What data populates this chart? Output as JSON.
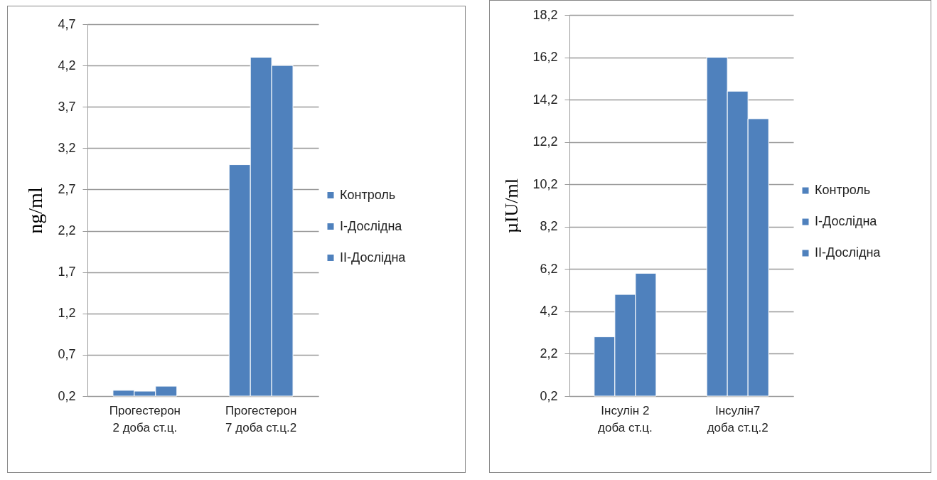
{
  "chart_data": [
    {
      "type": "bar",
      "ylabel": "ng/ml",
      "categories": [
        "Прогестерон\n2 доба ст.ц.",
        "Прогестерон\n7 доба ст.ц.2"
      ],
      "series": [
        {
          "name": "Контроль",
          "color": "#4f81bd",
          "values": [
            0.27,
            3.0
          ]
        },
        {
          "name": "I-Дослідна",
          "color": "#4f81bd",
          "values": [
            0.26,
            4.3
          ]
        },
        {
          "name": "II-Дослідна",
          "color": "#4f81bd",
          "values": [
            0.32,
            4.2
          ]
        }
      ],
      "ylim": [
        0.2,
        4.7
      ],
      "yticks": [
        {
          "value": 0.2,
          "label": "0,2"
        },
        {
          "value": 0.7,
          "label": "0,7"
        },
        {
          "value": 1.2,
          "label": "1,2"
        },
        {
          "value": 1.7,
          "label": "1,7"
        },
        {
          "value": 2.2,
          "label": "2,2"
        },
        {
          "value": 2.7,
          "label": "2,7"
        },
        {
          "value": 3.2,
          "label": "3,2"
        },
        {
          "value": 3.7,
          "label": "3,7"
        },
        {
          "value": 4.2,
          "label": "4,2"
        },
        {
          "value": 4.7,
          "label": "4,7"
        }
      ],
      "grid": "y",
      "legend": "right"
    },
    {
      "type": "bar",
      "ylabel": "µIU/ml",
      "categories": [
        "Інсулін 2\nдоба ст.ц.",
        "Інсулін7\nдоба ст.ц.2"
      ],
      "series": [
        {
          "name": "Контроль",
          "color": "#4f81bd",
          "values": [
            3.0,
            16.2
          ]
        },
        {
          "name": "I-Дослідна",
          "color": "#4f81bd",
          "values": [
            5.0,
            14.6
          ]
        },
        {
          "name": "II-Дослідна",
          "color": "#4f81bd",
          "values": [
            6.0,
            13.3
          ]
        }
      ],
      "ylim": [
        0.2,
        18.2
      ],
      "yticks": [
        {
          "value": 0.2,
          "label": "0,2"
        },
        {
          "value": 2.2,
          "label": "2,2"
        },
        {
          "value": 4.2,
          "label": "4,2"
        },
        {
          "value": 6.2,
          "label": "6,2"
        },
        {
          "value": 8.2,
          "label": "8,2"
        },
        {
          "value": 10.2,
          "label": "10,2"
        },
        {
          "value": 12.2,
          "label": "12,2"
        },
        {
          "value": 14.2,
          "label": "14,2"
        },
        {
          "value": 16.2,
          "label": "16,2"
        },
        {
          "value": 18.2,
          "label": "18,2"
        }
      ],
      "grid": "y",
      "legend": "right"
    }
  ]
}
